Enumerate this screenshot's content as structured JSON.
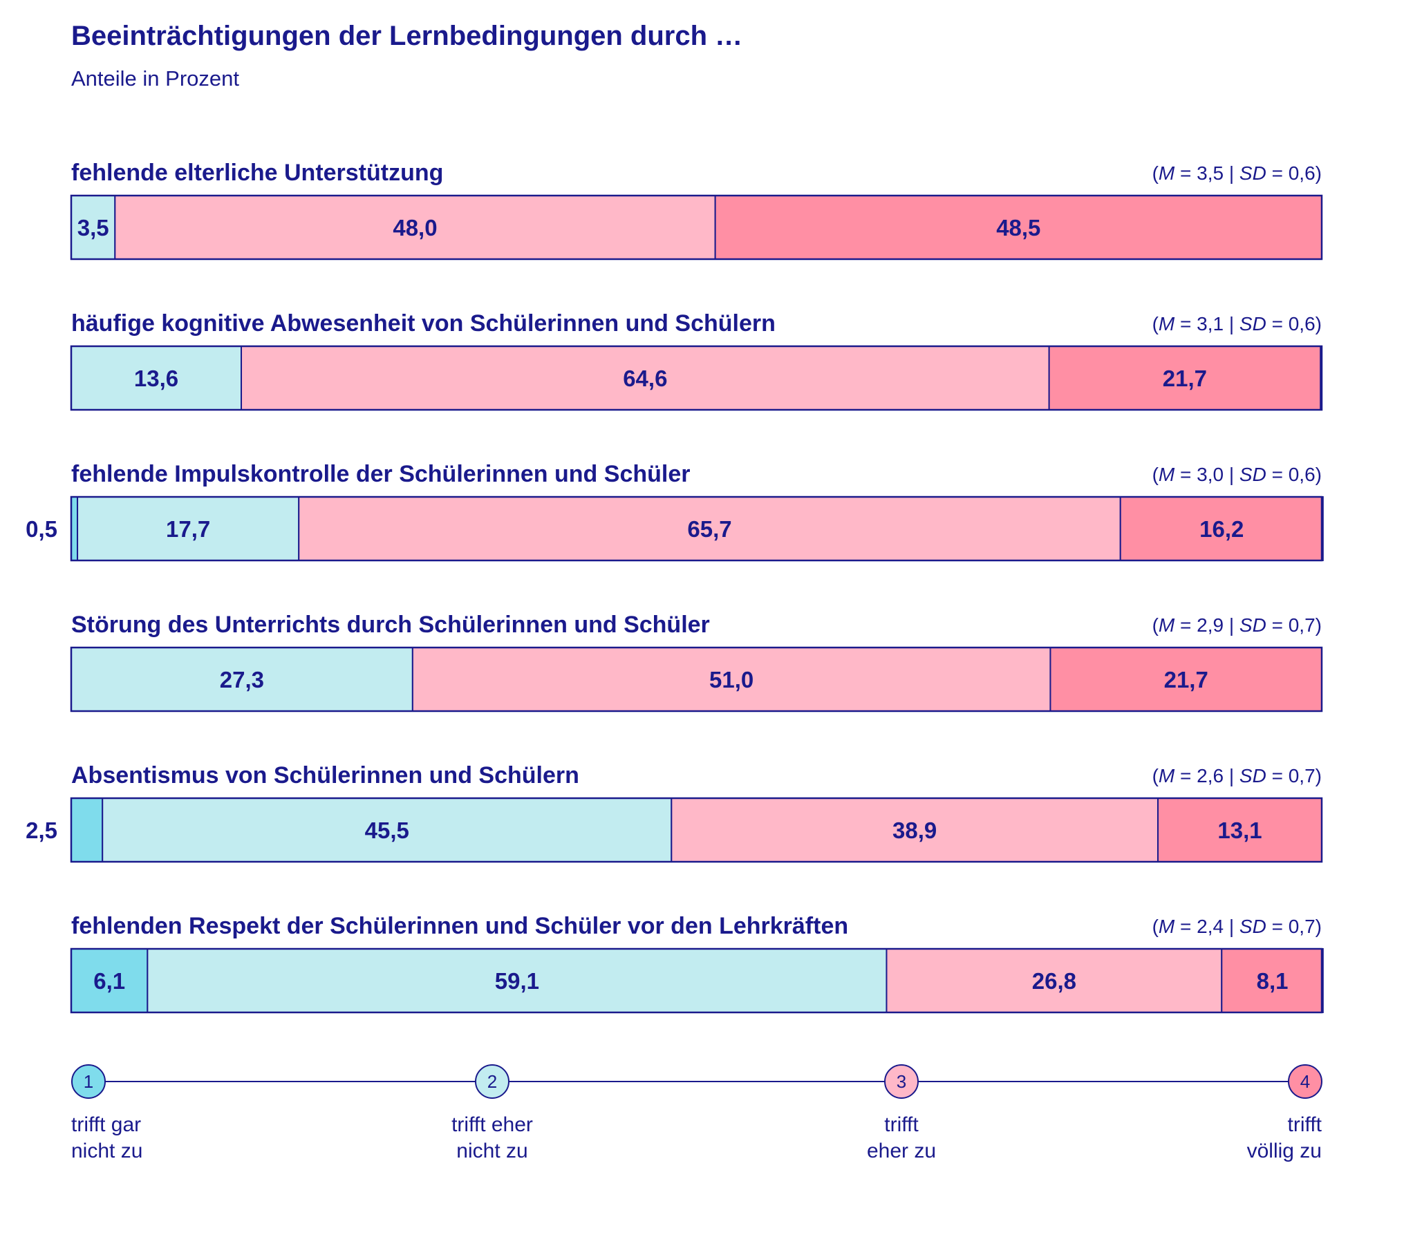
{
  "title": "Beeinträchtigungen der Lernbedingungen durch …",
  "subtitle": "Anteile in Prozent",
  "colors": {
    "text": "#1a1a8c",
    "cat1": "#7fdcec",
    "cat2": "#c2ecf0",
    "cat3": "#ffb8c8",
    "cat4": "#ff8fa4"
  },
  "chart_data": {
    "type": "bar",
    "orientation": "horizontal",
    "stacked": true,
    "xlim": [
      0,
      100
    ],
    "categories": [
      "fehlende elterliche Unterstützung",
      "häufige kognitive Abwesenheit von Schülerinnen und Schülern",
      "fehlende Impulskontrolle der Schülerinnen und Schüler",
      "Störung des Unterrichts durch Schülerinnen und Schüler",
      "Absentismus von Schülerinnen und Schülern",
      "fehlenden Respekt der Schülerinnen und Schüler vor den Lehrkräften"
    ],
    "stats": [
      {
        "M": "3,5",
        "SD": "0,6"
      },
      {
        "M": "3,1",
        "SD": "0,6"
      },
      {
        "M": "3,0",
        "SD": "0,6"
      },
      {
        "M": "2,9",
        "SD": "0,7"
      },
      {
        "M": "2,6",
        "SD": "0,7"
      },
      {
        "M": "2,4",
        "SD": "0,7"
      }
    ],
    "series": [
      {
        "name": "trifft gar nicht zu",
        "values": [
          0,
          0,
          0.5,
          0,
          2.5,
          6.1
        ],
        "labels": [
          "",
          "",
          "0,5",
          "",
          "2,5",
          "6,1"
        ]
      },
      {
        "name": "trifft eher nicht zu",
        "values": [
          3.5,
          13.6,
          17.7,
          27.3,
          45.5,
          59.1
        ],
        "labels": [
          "3,5",
          "13,6",
          "17,7",
          "27,3",
          "45,5",
          "59,1"
        ]
      },
      {
        "name": "trifft eher zu",
        "values": [
          48.0,
          64.6,
          65.7,
          51.0,
          38.9,
          26.8
        ],
        "labels": [
          "48,0",
          "64,6",
          "65,7",
          "51,0",
          "38,9",
          "26,8"
        ]
      },
      {
        "name": "trifft völlig zu",
        "values": [
          48.5,
          21.7,
          16.2,
          21.7,
          13.1,
          8.1
        ],
        "labels": [
          "48,5",
          "21,7",
          "16,2",
          "21,7",
          "13,1",
          "8,1"
        ]
      }
    ]
  },
  "scale": {
    "points": [
      {
        "num": "1",
        "line1": "trifft gar",
        "line2": "nicht zu"
      },
      {
        "num": "2",
        "line1": "trifft eher",
        "line2": "nicht zu"
      },
      {
        "num": "3",
        "line1": "trifft",
        "line2": "eher zu"
      },
      {
        "num": "4",
        "line1": "trifft",
        "line2": "völlig zu"
      }
    ]
  }
}
